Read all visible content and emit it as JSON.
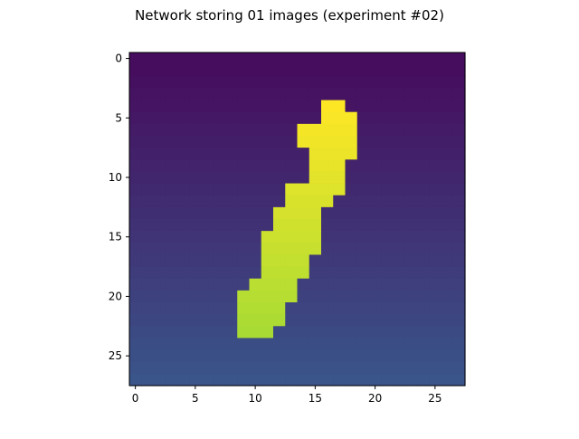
{
  "chart_data": {
    "type": "heatmap",
    "title": "Network storing 01 images (experiment #02)",
    "xlabel": "",
    "ylabel": "",
    "shape": [
      28,
      28
    ],
    "xlim": [
      -0.5,
      27.5
    ],
    "ylim": [
      27.5,
      -0.5
    ],
    "xticks": [
      0,
      5,
      10,
      15,
      20,
      25
    ],
    "yticks": [
      0,
      5,
      10,
      15,
      20,
      25
    ],
    "grid": false,
    "colormap": "viridis",
    "background": {
      "description_rows": "row-dependent gradient from dark purple (top) to blue (bottom)",
      "top_color": "#460d5e",
      "bottom_color": "#3a558a",
      "min_row": 1
    },
    "foreground_rows": [
      {
        "row": 4,
        "cols": [
          16,
          17
        ]
      },
      {
        "row": 5,
        "cols": [
          16,
          17,
          18
        ]
      },
      {
        "row": 6,
        "cols": [
          14,
          15,
          16,
          17,
          18
        ]
      },
      {
        "row": 7,
        "cols": [
          14,
          15,
          16,
          17,
          18
        ]
      },
      {
        "row": 8,
        "cols": [
          15,
          16,
          17,
          18
        ]
      },
      {
        "row": 9,
        "cols": [
          15,
          16,
          17
        ]
      },
      {
        "row": 10,
        "cols": [
          15,
          16,
          17
        ]
      },
      {
        "row": 11,
        "cols": [
          13,
          14,
          15,
          16,
          17
        ]
      },
      {
        "row": 12,
        "cols": [
          13,
          14,
          15,
          16
        ]
      },
      {
        "row": 13,
        "cols": [
          12,
          13,
          14,
          15
        ]
      },
      {
        "row": 14,
        "cols": [
          12,
          13,
          14,
          15
        ]
      },
      {
        "row": 15,
        "cols": [
          11,
          12,
          13,
          14,
          15
        ]
      },
      {
        "row": 16,
        "cols": [
          11,
          12,
          13,
          14,
          15
        ]
      },
      {
        "row": 17,
        "cols": [
          11,
          12,
          13,
          14
        ]
      },
      {
        "row": 18,
        "cols": [
          11,
          12,
          13,
          14
        ]
      },
      {
        "row": 19,
        "cols": [
          10,
          11,
          12,
          13
        ]
      },
      {
        "row": 20,
        "cols": [
          9,
          10,
          11,
          12,
          13
        ]
      },
      {
        "row": 21,
        "cols": [
          9,
          10,
          11,
          12
        ]
      },
      {
        "row": 22,
        "cols": [
          9,
          10,
          11,
          12
        ]
      },
      {
        "row": 23,
        "cols": [
          9,
          10,
          11
        ]
      }
    ],
    "foreground_colors": {
      "top": "#fde725",
      "bottom": "#a8db34"
    }
  }
}
